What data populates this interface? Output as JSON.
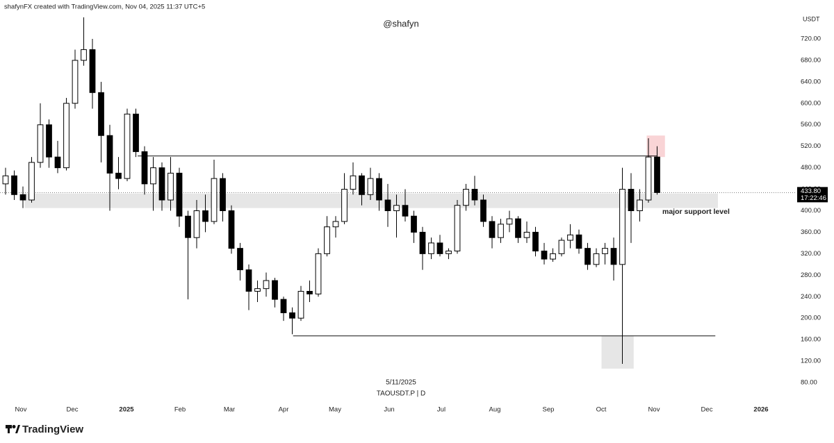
{
  "header": {
    "text": "shafynFX created with TradingView.com, Nov 04, 2025 11:37 UTC+5"
  },
  "footer": {
    "brand": "TradingView"
  },
  "chart_data": {
    "type": "candlestick",
    "watermark": "@shafyn",
    "currency": "USDT",
    "date": "5/11/2025",
    "symbol": "TAOUSDT.P | D",
    "up_color": "#ffffff",
    "down_color": "#000000",
    "wick_color": "#000000",
    "open": [
      450,
      465,
      430,
      420,
      490,
      560,
      500,
      480,
      600,
      680,
      700,
      620,
      540,
      470,
      460,
      580,
      510,
      450,
      480,
      420,
      470,
      390,
      350,
      400,
      380,
      460,
      400,
      330,
      290,
      250,
      255,
      270,
      235,
      210,
      200,
      250,
      245,
      320,
      370,
      380,
      440,
      465,
      430,
      460,
      420,
      400,
      410,
      390,
      360,
      320,
      340,
      320,
      325,
      410,
      440,
      420,
      380,
      350,
      375,
      385,
      350,
      360,
      325,
      310,
      320,
      345,
      355,
      330,
      300,
      320,
      330,
      300,
      440,
      400,
      420,
      500
    ],
    "high": [
      480,
      475,
      445,
      500,
      600,
      570,
      530,
      610,
      700,
      760,
      720,
      640,
      560,
      500,
      590,
      590,
      520,
      500,
      490,
      500,
      480,
      400,
      420,
      430,
      495,
      470,
      410,
      340,
      300,
      270,
      285,
      275,
      240,
      220,
      260,
      270,
      330,
      390,
      390,
      470,
      490,
      470,
      480,
      470,
      450,
      430,
      440,
      400,
      370,
      350,
      355,
      330,
      420,
      450,
      465,
      430,
      390,
      385,
      400,
      390,
      380,
      370,
      340,
      330,
      350,
      375,
      365,
      340,
      330,
      340,
      350,
      480,
      470,
      440,
      535,
      520
    ],
    "low": [
      430,
      420,
      405,
      415,
      480,
      480,
      470,
      475,
      590,
      670,
      590,
      490,
      400,
      440,
      455,
      500,
      430,
      400,
      400,
      400,
      370,
      235,
      330,
      360,
      375,
      380,
      320,
      270,
      215,
      230,
      240,
      220,
      195,
      170,
      195,
      230,
      240,
      315,
      350,
      375,
      430,
      410,
      420,
      400,
      370,
      350,
      380,
      340,
      290,
      310,
      315,
      310,
      320,
      400,
      410,
      370,
      330,
      340,
      360,
      340,
      340,
      315,
      300,
      305,
      315,
      330,
      320,
      290,
      295,
      300,
      270,
      115,
      340,
      380,
      415,
      430
    ],
    "close": [
      465,
      430,
      420,
      490,
      560,
      500,
      480,
      600,
      680,
      700,
      620,
      540,
      470,
      460,
      580,
      510,
      450,
      480,
      420,
      470,
      390,
      350,
      400,
      380,
      460,
      400,
      330,
      290,
      250,
      255,
      270,
      235,
      210,
      200,
      250,
      245,
      320,
      370,
      380,
      440,
      465,
      430,
      460,
      420,
      400,
      410,
      390,
      360,
      320,
      340,
      320,
      325,
      410,
      440,
      420,
      380,
      350,
      375,
      385,
      350,
      360,
      325,
      310,
      320,
      345,
      355,
      330,
      300,
      320,
      330,
      300,
      440,
      400,
      420,
      500,
      433.8
    ],
    "xlim": [
      -0.64,
      90.96
    ],
    "xticks": [
      {
        "value": 1.76,
        "label": "Nov"
      },
      {
        "value": 7.68,
        "label": "Dec"
      },
      {
        "value": 13.92,
        "label": "2025",
        "major": true
      },
      {
        "value": 20.08,
        "label": "Feb"
      },
      {
        "value": 25.76,
        "label": "Mar"
      },
      {
        "value": 32,
        "label": "Apr"
      },
      {
        "value": 37.92,
        "label": "May"
      },
      {
        "value": 44.16,
        "label": "Jun"
      },
      {
        "value": 50.16,
        "label": "Jul"
      },
      {
        "value": 56.32,
        "label": "Aug"
      },
      {
        "value": 62.48,
        "label": "Sep"
      },
      {
        "value": 68.56,
        "label": "Oct"
      },
      {
        "value": 74.64,
        "label": "Nov"
      },
      {
        "value": 80.72,
        "label": "Dec"
      },
      {
        "value": 86.96,
        "label": "2026",
        "major": true
      }
    ],
    "ylim": [
      49,
      766.5
    ],
    "yticks": [
      {
        "value": 80,
        "label": "80.00"
      },
      {
        "value": 120,
        "label": "120.00"
      },
      {
        "value": 160,
        "label": "160.00"
      },
      {
        "value": 200,
        "label": "200.00"
      },
      {
        "value": 240,
        "label": "240.00"
      },
      {
        "value": 280,
        "label": "280.00"
      },
      {
        "value": 320,
        "label": "320.00"
      },
      {
        "value": 360,
        "label": "360.00"
      },
      {
        "value": 400,
        "label": "400.00"
      },
      {
        "value": 440,
        "label": "440.00"
      },
      {
        "value": 480,
        "label": "480.00"
      },
      {
        "value": 520,
        "label": "520.00"
      },
      {
        "value": 560,
        "label": "560.00"
      },
      {
        "value": 600,
        "label": "600.00"
      },
      {
        "value": 640,
        "label": "640.00"
      },
      {
        "value": 680,
        "label": "680.00"
      },
      {
        "value": 720,
        "label": "720.00"
      }
    ],
    "zones": [
      {
        "y": [
          405,
          432
        ],
        "x": [
          2.2,
          82
        ],
        "color": "#e6e6e6"
      },
      {
        "y": [
          500,
          540
        ],
        "x": [
          73.8,
          75.9
        ],
        "color": "#f9d4d6"
      },
      {
        "y": [
          106,
          167
        ],
        "x": [
          68.6,
          72.3
        ],
        "color": "#e6e6e6"
      }
    ],
    "hlines": [
      {
        "y": 502,
        "x": [
          15.2,
          75
        ]
      },
      {
        "y": 167,
        "x": [
          33.1,
          81.7
        ]
      }
    ],
    "last_price": {
      "value": 433.8,
      "label": "433.80"
    },
    "countdown": "17:22:46",
    "annotation": {
      "text": "major support level",
      "x": 75.6,
      "y": 398
    }
  }
}
